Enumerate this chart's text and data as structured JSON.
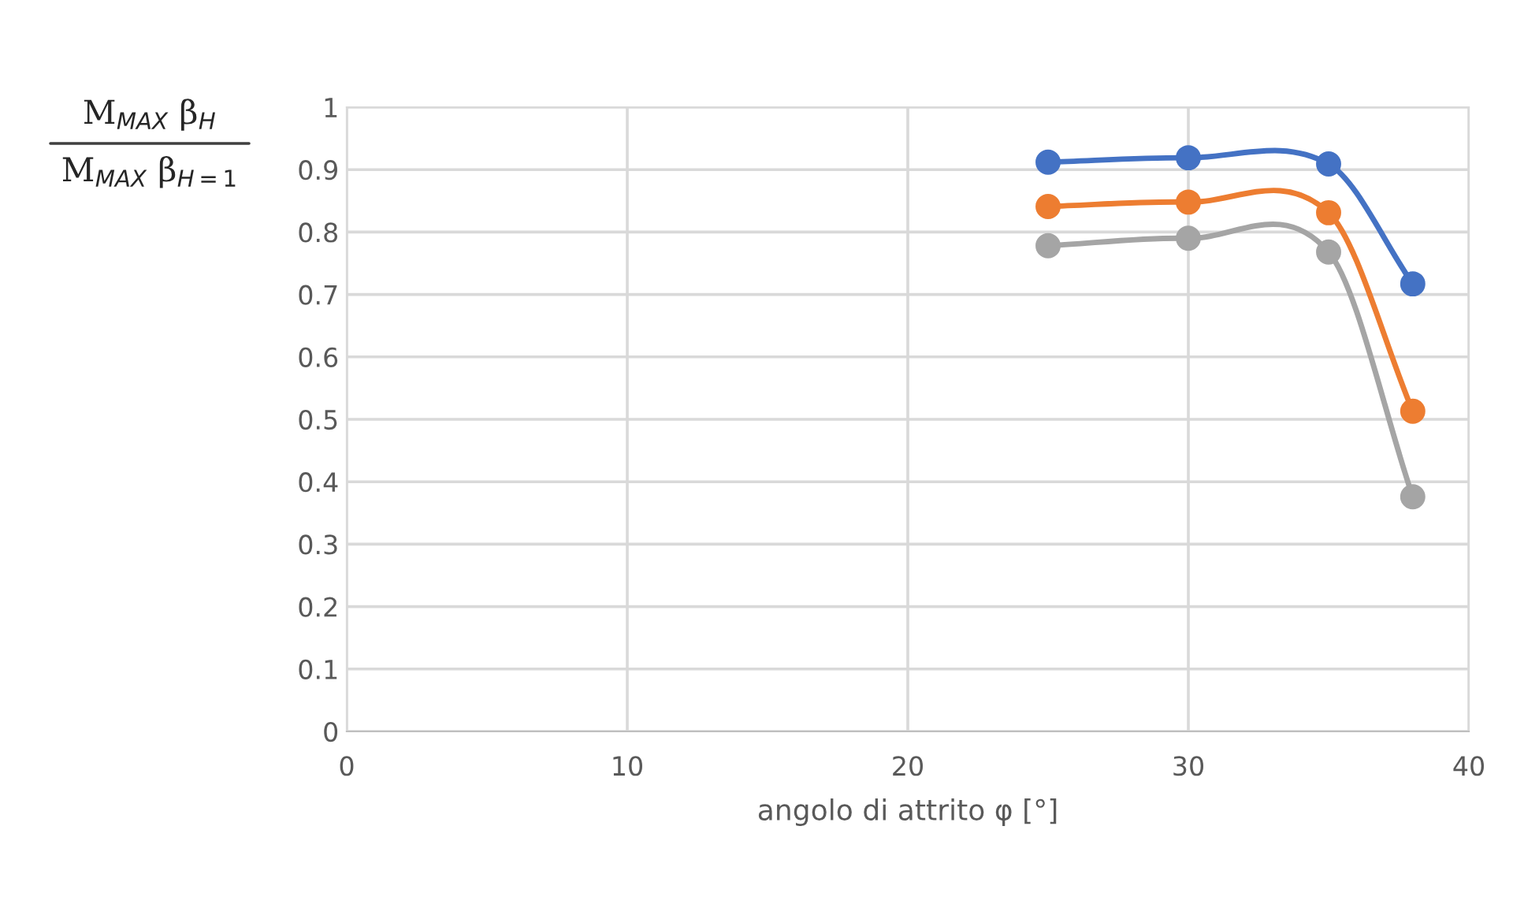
{
  "chart_data": {
    "type": "line",
    "xlabel": "angolo di attrito φ [°]",
    "ylabel": "M$_{MAX}$ β$_{H}$\nM$_{MAX}$ β$_{H=1}$",
    "x": [
      25,
      30,
      35,
      38
    ],
    "series": [
      {
        "color": "#4472c4",
        "values": [
          0.912,
          0.919,
          0.909,
          0.717
        ]
      },
      {
        "color": "#ed7d31",
        "values": [
          0.841,
          0.848,
          0.831,
          0.513
        ]
      },
      {
        "color": "#a5a5a5",
        "values": [
          0.778,
          0.79,
          0.768,
          0.376
        ]
      }
    ],
    "xlim": [
      0,
      40
    ],
    "xticks": [
      0,
      10,
      20,
      30,
      40
    ],
    "ylim": [
      0,
      1
    ],
    "yticks": [
      0,
      {
        "value": 0.1,
        "label": "0.1"
      },
      {
        "value": 0.2,
        "label": "0.2"
      },
      {
        "value": 0.3,
        "label": "0.3"
      },
      {
        "value": 0.4,
        "label": "0.4"
      },
      {
        "value": 0.5,
        "label": "0.5"
      },
      {
        "value": 0.6,
        "label": "0.6"
      },
      {
        "value": 0.7,
        "label": "0.7"
      },
      {
        "value": 0.8,
        "label": "0.8"
      },
      {
        "value": 0.9,
        "label": "0.9"
      },
      1
    ],
    "grid": true,
    "marker": "circle",
    "line_style": "solid"
  }
}
